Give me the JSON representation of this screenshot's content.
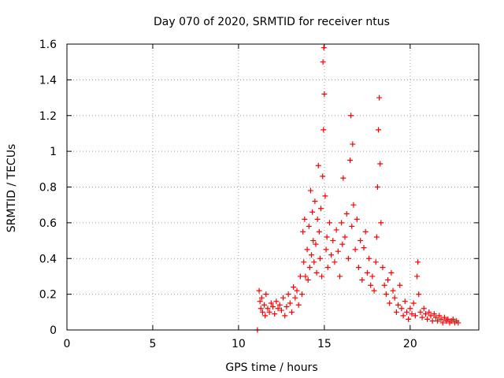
{
  "chart_data": {
    "type": "scatter",
    "title": "Day 070 of 2020, SRMTID for receiver ntus",
    "xlabel": "GPS time / hours",
    "ylabel": "SRMTID / TECUs",
    "xlim": [
      0,
      24
    ],
    "ylim": [
      0,
      1.6
    ],
    "xticks": [
      0,
      5,
      10,
      15,
      20
    ],
    "xtick_labels": [
      "0",
      "5",
      "10",
      "15",
      "20"
    ],
    "yticks": [
      0,
      0.2,
      0.4,
      0.6,
      0.8,
      1,
      1.2,
      1.4,
      1.6
    ],
    "ytick_labels": [
      "0",
      "0.2",
      "0.4",
      "0.6",
      "0.8",
      "1",
      "1.2",
      "1.4",
      "1.6"
    ],
    "grid": true,
    "marker": "+",
    "color": "#ff0000",
    "series": [
      {
        "name": "SRMTID",
        "x": [
          11.1,
          11.2,
          11.25,
          11.3,
          11.35,
          11.4,
          11.5,
          11.55,
          11.6,
          11.7,
          11.8,
          11.9,
          12.0,
          12.1,
          12.2,
          12.3,
          12.4,
          12.5,
          12.6,
          12.7,
          12.8,
          12.9,
          13.0,
          13.1,
          13.2,
          13.3,
          13.4,
          13.5,
          13.6,
          13.7,
          13.75,
          13.8,
          13.85,
          13.9,
          14.0,
          14.05,
          14.1,
          14.15,
          14.2,
          14.25,
          14.3,
          14.35,
          14.4,
          14.45,
          14.5,
          14.55,
          14.6,
          14.65,
          14.7,
          14.75,
          14.8,
          14.85,
          14.9,
          14.92,
          14.95,
          14.97,
          15.0,
          15.05,
          15.1,
          15.15,
          15.2,
          15.3,
          15.4,
          15.5,
          15.6,
          15.7,
          15.8,
          15.9,
          16.0,
          16.05,
          16.1,
          16.2,
          16.3,
          16.4,
          16.5,
          16.55,
          16.6,
          16.65,
          16.7,
          16.8,
          16.9,
          17.0,
          17.1,
          17.2,
          17.3,
          17.4,
          17.5,
          17.6,
          17.7,
          17.8,
          17.9,
          18.0,
          18.05,
          18.1,
          18.15,
          18.2,
          18.25,
          18.3,
          18.4,
          18.5,
          18.6,
          18.7,
          18.8,
          18.9,
          19.0,
          19.1,
          19.2,
          19.3,
          19.4,
          19.5,
          19.6,
          19.7,
          19.8,
          19.9,
          20.0,
          20.1,
          20.2,
          20.3,
          20.4,
          20.45,
          20.5,
          20.6,
          20.7,
          20.8,
          20.9,
          21.0,
          21.1,
          21.2,
          21.3,
          21.4,
          21.5,
          21.6,
          21.7,
          21.8,
          21.9,
          22.0,
          22.1,
          22.2,
          22.3,
          22.4,
          22.5,
          22.6,
          22.7,
          22.8
        ],
        "y": [
          0.0,
          0.22,
          0.16,
          0.12,
          0.18,
          0.1,
          0.14,
          0.08,
          0.2,
          0.12,
          0.1,
          0.15,
          0.13,
          0.09,
          0.16,
          0.12,
          0.14,
          0.11,
          0.18,
          0.08,
          0.13,
          0.2,
          0.15,
          0.1,
          0.24,
          0.18,
          0.22,
          0.14,
          0.3,
          0.2,
          0.55,
          0.38,
          0.62,
          0.3,
          0.45,
          0.28,
          0.58,
          0.35,
          0.78,
          0.42,
          0.66,
          0.5,
          0.38,
          0.72,
          0.48,
          0.32,
          0.62,
          0.92,
          0.55,
          0.4,
          0.68,
          0.3,
          0.86,
          1.5,
          1.12,
          1.58,
          1.32,
          0.75,
          0.45,
          0.52,
          0.35,
          0.6,
          0.42,
          0.5,
          0.38,
          0.56,
          0.44,
          0.3,
          0.6,
          0.48,
          0.85,
          0.52,
          0.65,
          0.4,
          0.95,
          1.2,
          0.58,
          1.04,
          0.7,
          0.45,
          0.62,
          0.35,
          0.5,
          0.28,
          0.46,
          0.55,
          0.32,
          0.4,
          0.25,
          0.3,
          0.22,
          0.38,
          0.52,
          0.8,
          1.12,
          1.3,
          0.93,
          0.6,
          0.35,
          0.25,
          0.2,
          0.28,
          0.15,
          0.32,
          0.22,
          0.18,
          0.1,
          0.14,
          0.25,
          0.12,
          0.08,
          0.16,
          0.1,
          0.06,
          0.12,
          0.09,
          0.15,
          0.08,
          0.3,
          0.38,
          0.2,
          0.1,
          0.07,
          0.12,
          0.09,
          0.06,
          0.1,
          0.08,
          0.05,
          0.09,
          0.07,
          0.05,
          0.08,
          0.06,
          0.04,
          0.07,
          0.05,
          0.06,
          0.04,
          0.05,
          0.06,
          0.04,
          0.05,
          0.04
        ]
      }
    ]
  }
}
